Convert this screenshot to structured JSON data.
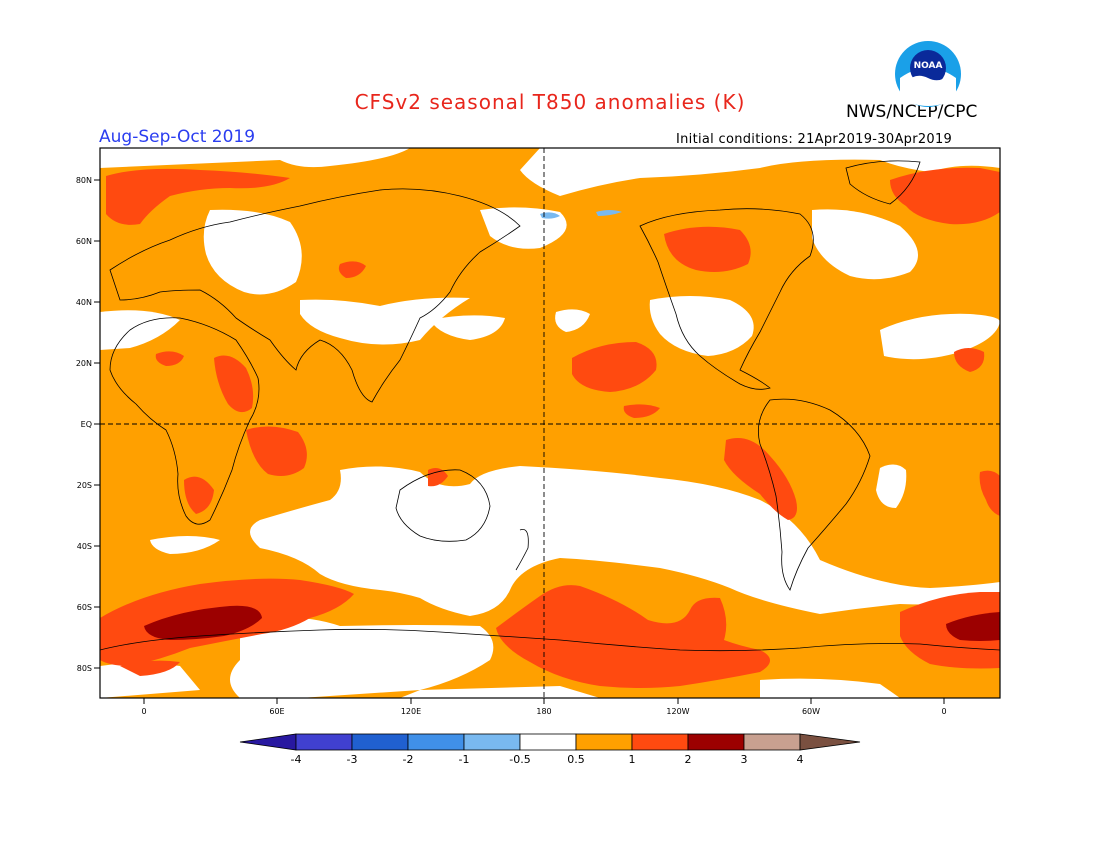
{
  "header": {
    "title": "CFSv2 seasonal T850 anomalies (K)",
    "agency": "NWS/NCEP/CPC",
    "season": "Aug-Sep-Oct 2019",
    "initial_conditions": "Initial conditions: 21Apr2019-30Apr2019",
    "logo_text": "NOAA"
  },
  "map": {
    "lat_labels": [
      "80N",
      "60N",
      "40N",
      "20N",
      "EQ",
      "20S",
      "40S",
      "60S",
      "80S"
    ],
    "lon_labels": [
      "0",
      "60E",
      "120E",
      "180",
      "120W",
      "60W",
      "0"
    ],
    "colors": {
      "neutral": "#ffffff",
      "anom_0_5_to_1": "#ffa000",
      "anom_1_to_2": "#ff4a10",
      "anom_2_to_3": "#9c0000",
      "cool_0_5_to_1": "#79b9f0"
    }
  },
  "colorbar": {
    "labels": [
      "-4",
      "-3",
      "-2",
      "-1",
      "-0.5",
      "0.5",
      "1",
      "2",
      "3",
      "4"
    ],
    "colors": [
      "#2818a0",
      "#4040d0",
      "#2060d0",
      "#4090e8",
      "#79b9f0",
      "#ffffff",
      "#ffa000",
      "#ff4a10",
      "#9c0000",
      "#c8a090",
      "#7a5040"
    ]
  }
}
